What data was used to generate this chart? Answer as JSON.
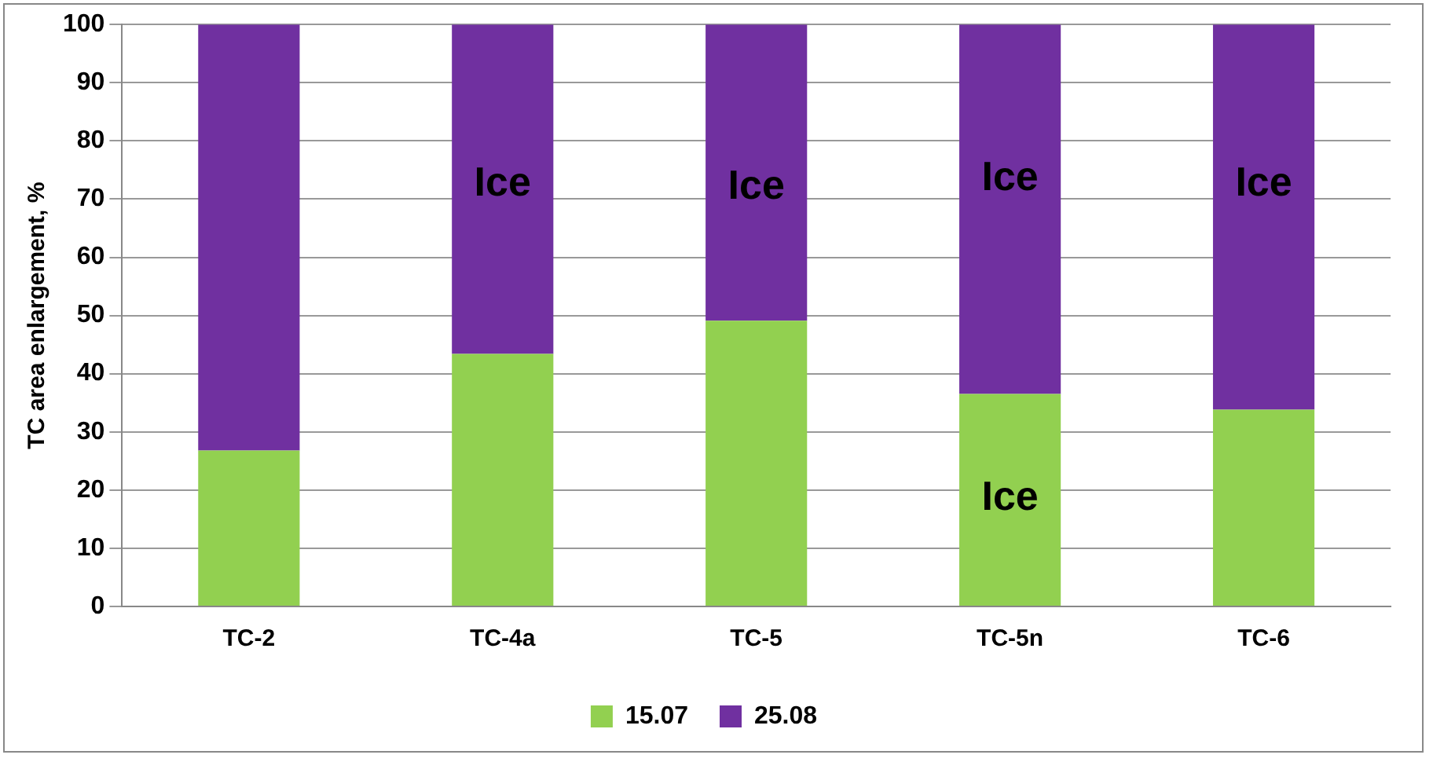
{
  "chart_data": {
    "type": "bar",
    "stacked": true,
    "ylabel": "TC area enlargement, %",
    "categories": [
      "TC-2",
      "TC-4a",
      "TC-5",
      "TC-5n",
      "TC-6"
    ],
    "series": [
      {
        "name": "15.07",
        "color": "#92d050",
        "values": [
          26.8,
          43.4,
          49.1,
          36.5,
          33.8
        ]
      },
      {
        "name": "25.08",
        "color": "#7030a0",
        "values": [
          73.2,
          56.6,
          50.9,
          63.5,
          66.2
        ]
      }
    ],
    "ylim": [
      0,
      100
    ],
    "yticks": [
      0,
      10,
      20,
      30,
      40,
      50,
      60,
      70,
      80,
      90,
      100
    ],
    "grid": "y",
    "legend": "bottom",
    "annotations": [
      "Ice",
      "Ice",
      "Ice",
      "Ice",
      "Ice"
    ]
  }
}
